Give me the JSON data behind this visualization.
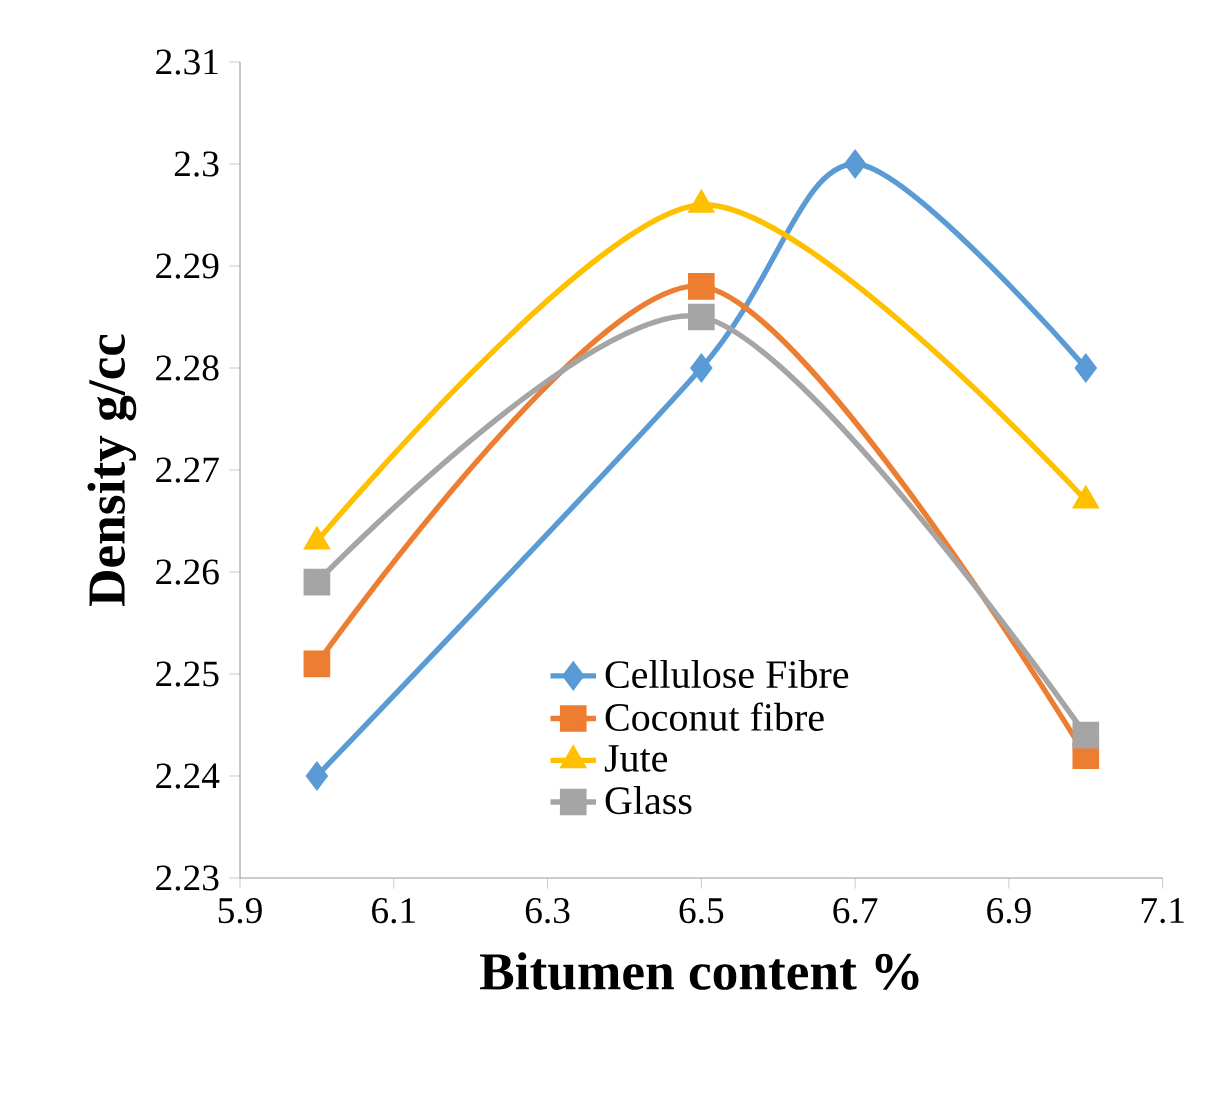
{
  "chart_data": {
    "type": "line",
    "xlabel": "Bitumen content %",
    "ylabel": "Density g/cc",
    "xlim": [
      5.9,
      7.1
    ],
    "xticks": [
      5.9,
      6.1,
      6.3,
      6.5,
      6.7,
      6.9,
      7.1
    ],
    "ylim": [
      2.23,
      2.31
    ],
    "yticks": [
      2.23,
      2.24,
      2.25,
      2.26,
      2.27,
      2.28,
      2.29,
      2.3,
      2.31
    ],
    "grid": false,
    "legend": "bottom",
    "series": [
      {
        "name": "Cellulose Fibre",
        "color": "#5b9bd5",
        "marker": "diamond",
        "x": [
          6.0,
          6.5,
          6.7,
          7.0
        ],
        "values": [
          2.24,
          2.28,
          2.3,
          2.28
        ]
      },
      {
        "name": "Coconut fibre",
        "color": "#ed7d31",
        "marker": "square",
        "x": [
          6.0,
          6.5,
          7.0
        ],
        "values": [
          2.251,
          2.288,
          2.242
        ]
      },
      {
        "name": "Jute",
        "color": "#ffc000",
        "marker": "triangle",
        "x": [
          6.0,
          6.5,
          7.0
        ],
        "values": [
          2.263,
          2.296,
          2.267
        ]
      },
      {
        "name": "Glass",
        "color": "#a5a5a5",
        "marker": "square",
        "x": [
          6.0,
          6.5,
          7.0
        ],
        "values": [
          2.259,
          2.285,
          2.244
        ]
      }
    ]
  }
}
